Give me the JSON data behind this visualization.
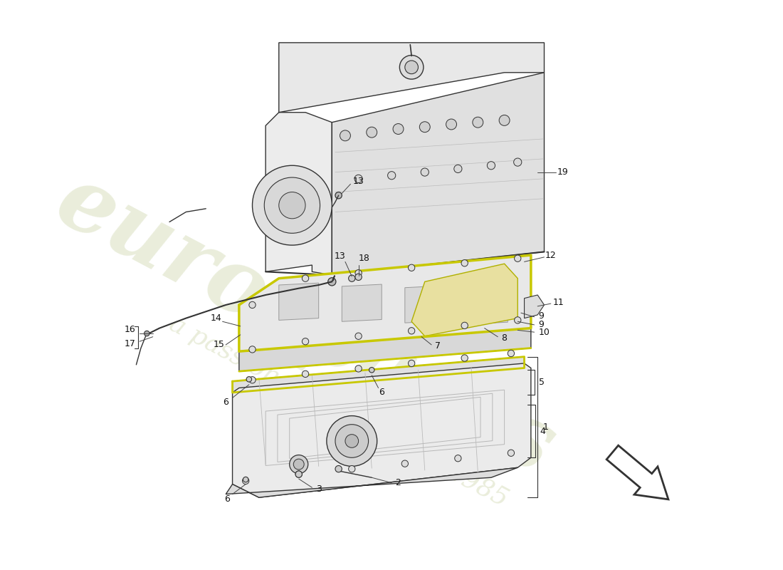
{
  "bg_color": "#ffffff",
  "line_color": "#333333",
  "label_color": "#111111",
  "engine_fill": "#f0f0f0",
  "pan_fill": "#f5f5f5",
  "gasket_color": "#c8c800",
  "yellow_fill": "#e8e0a0",
  "watermark_color": "#d0d8b0",
  "watermark_sub_color": "#d0d8b0",
  "figsize": [
    11.0,
    8.0
  ],
  "dpi": 100
}
